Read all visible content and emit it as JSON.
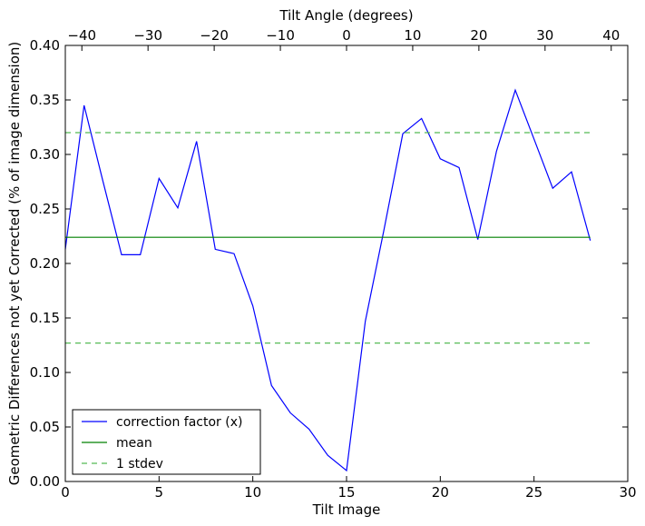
{
  "chart_data": {
    "type": "line",
    "xlabel": "Tilt Image",
    "x2label": "Tilt Angle (degrees)",
    "ylabel": "Geometric Differences not yet Corrected (% of image dimension)",
    "xlim": [
      0,
      30
    ],
    "ylim": [
      0,
      0.4
    ],
    "x2lim": [
      -42.5,
      42.5
    ],
    "x_ticks": [
      0,
      5,
      10,
      15,
      20,
      25,
      30
    ],
    "x_tick_labels": [
      "0",
      "5",
      "10",
      "15",
      "20",
      "25",
      "30"
    ],
    "y_ticks": [
      0.0,
      0.05,
      0.1,
      0.15,
      0.2,
      0.25,
      0.3,
      0.35,
      0.4
    ],
    "y_tick_labels": [
      "0.00",
      "0.05",
      "0.10",
      "0.15",
      "0.20",
      "0.25",
      "0.30",
      "0.35",
      "0.40"
    ],
    "x2_ticks": [
      -40,
      -30,
      -20,
      -10,
      0,
      10,
      20,
      30,
      40
    ],
    "x2_tick_labels": [
      "−40",
      "−30",
      "−20",
      "−10",
      "0",
      "10",
      "20",
      "30",
      "40"
    ],
    "grid": false,
    "legend_position": "bottom-left",
    "series": [
      {
        "name": "correction factor (x)",
        "color": "#0000ff",
        "style": "solid",
        "x": [
          0,
          1,
          2,
          3,
          4,
          5,
          6,
          7,
          8,
          9,
          10,
          11,
          12,
          13,
          14,
          15,
          16,
          17,
          18,
          19,
          20,
          21,
          22,
          23,
          24,
          25,
          26,
          27,
          28
        ],
        "y": [
          0.213,
          0.345,
          0.276,
          0.208,
          0.208,
          0.278,
          0.251,
          0.312,
          0.213,
          0.209,
          0.161,
          0.088,
          0.063,
          0.048,
          0.024,
          0.01,
          0.147,
          0.231,
          0.319,
          0.333,
          0.296,
          0.288,
          0.222,
          0.303,
          0.359,
          0.314,
          0.269,
          0.284,
          0.221
        ]
      },
      {
        "name": "mean",
        "color": "#008000",
        "style": "solid",
        "x": [
          0,
          28
        ],
        "y": [
          0.224,
          0.224
        ]
      },
      {
        "name": "1 stdev",
        "color": "#55bb55",
        "style": "dashed",
        "x": [
          0,
          28
        ],
        "y": [
          0.32,
          0.32
        ]
      },
      {
        "name": "",
        "color": "#55bb55",
        "style": "dashed",
        "x": [
          0,
          28
        ],
        "y": [
          0.127,
          0.127
        ]
      }
    ]
  }
}
